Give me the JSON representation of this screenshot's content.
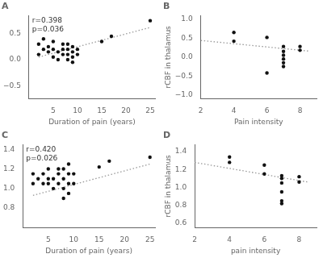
{
  "chart_data": [
    {
      "type": "scatter",
      "title": "A",
      "annotation": "r=0.398\np=0.036",
      "xlabel": "Duration of pain (years)",
      "xlim": [
        0,
        26
      ],
      "xticks": [
        5,
        10,
        15,
        20,
        25
      ],
      "ylim": [
        -0.75,
        0.85
      ],
      "yticks": [
        {
          "value": -0.5,
          "label": "−0.5"
        },
        {
          "value": 0.0,
          "label": "0.0"
        },
        {
          "value": 0.5,
          "label": "0.5"
        }
      ],
      "grid": false,
      "series": [
        {
          "type": "scatter",
          "color": "#111111",
          "x": [
            2,
            2,
            3,
            3,
            4,
            4,
            5,
            5,
            5,
            6,
            6,
            7,
            7,
            7,
            8,
            8,
            8,
            8,
            9,
            9,
            9,
            9,
            10,
            10,
            15,
            17,
            25
          ],
          "values": [
            0.1,
            0.3,
            0.2,
            0.4,
            0.15,
            0.25,
            0.05,
            0.2,
            0.35,
            0.0,
            0.15,
            0.1,
            0.2,
            0.3,
            0.0,
            0.1,
            0.2,
            0.3,
            -0.05,
            0.05,
            0.15,
            0.25,
            0.1,
            0.2,
            0.35,
            0.45,
            0.75
          ]
        },
        {
          "type": "line",
          "color": "#999999",
          "line_style": "dotted",
          "x": [
            2,
            25
          ],
          "values": [
            0.05,
            0.62
          ]
        }
      ]
    },
    {
      "type": "scatter",
      "title": "B",
      "xlabel": "Pain intensity",
      "ylabel": "rCBF in thalamus",
      "xlim": [
        2,
        9
      ],
      "xticks": [
        2,
        4,
        6,
        8
      ],
      "ylim": [
        -1.1,
        1.1
      ],
      "yticks": [
        {
          "value": -1.0,
          "label": "−1.0"
        },
        {
          "value": -0.5,
          "label": "−0.5"
        },
        {
          "value": 0.0,
          "label": "0.0"
        },
        {
          "value": 0.5,
          "label": "0.5"
        },
        {
          "value": 1.0,
          "label": "1.0"
        }
      ],
      "grid": false,
      "series": [
        {
          "type": "scatter",
          "color": "#111111",
          "x": [
            4,
            4,
            6,
            6,
            7,
            7,
            7,
            7,
            7,
            7,
            8,
            8
          ],
          "values": [
            0.65,
            0.42,
            0.52,
            -0.42,
            0.28,
            0.15,
            0.05,
            -0.05,
            -0.15,
            -0.25,
            0.28,
            0.18
          ]
        },
        {
          "type": "line",
          "color": "#999999",
          "line_style": "dotted",
          "x": [
            2,
            8.5
          ],
          "values": [
            0.44,
            0.16
          ]
        }
      ]
    },
    {
      "type": "scatter",
      "title": "C",
      "annotation": "r=0.420\np=0.026",
      "xlabel": "Duration of pain (years)",
      "xlim": [
        0,
        26
      ],
      "xticks": [
        5,
        10,
        15,
        20,
        25
      ],
      "ylim": [
        0.6,
        1.45
      ],
      "yticks": [
        0.8,
        {
          "value": 1.0,
          "label": "1.0"
        },
        1.2,
        1.4
      ],
      "grid": false,
      "series": [
        {
          "type": "scatter",
          "color": "#111111",
          "x": [
            2,
            2,
            3,
            4,
            4,
            5,
            5,
            5,
            6,
            6,
            7,
            7,
            7,
            8,
            8,
            8,
            8,
            9,
            9,
            9,
            9,
            10,
            10,
            15,
            17,
            25
          ],
          "values": [
            1.15,
            1.05,
            1.1,
            1.15,
            1.05,
            1.05,
            1.1,
            1.2,
            1.0,
            1.1,
            1.05,
            1.15,
            1.2,
            0.9,
            1.0,
            1.1,
            1.2,
            0.95,
            1.05,
            1.15,
            1.25,
            1.05,
            1.15,
            1.22,
            1.28,
            1.32
          ]
        },
        {
          "type": "line",
          "color": "#999999",
          "line_style": "dotted",
          "x": [
            2,
            25
          ],
          "values": [
            0.93,
            1.25
          ]
        }
      ]
    },
    {
      "type": "scatter",
      "title": "D",
      "xlabel": "pain intensity",
      "ylabel": "rCBF in thalamus",
      "xlim": [
        2,
        9
      ],
      "xticks": [
        2,
        4,
        6,
        8
      ],
      "ylim": [
        0.55,
        1.48
      ],
      "yticks": [
        0.6,
        0.8,
        {
          "value": 1.0,
          "label": "1.0"
        },
        1.2,
        1.4
      ],
      "grid": false,
      "series": [
        {
          "type": "scatter",
          "color": "#111111",
          "x": [
            4,
            4,
            6,
            6,
            7,
            7,
            7,
            7,
            7,
            7,
            8,
            8
          ],
          "values": [
            1.34,
            1.28,
            1.25,
            1.15,
            1.13,
            1.1,
            1.05,
            0.95,
            0.85,
            0.82,
            1.12,
            1.06
          ]
        },
        {
          "type": "line",
          "color": "#999999",
          "line_style": "dotted",
          "x": [
            2,
            8.5
          ],
          "values": [
            1.28,
            1.06
          ]
        }
      ]
    }
  ]
}
